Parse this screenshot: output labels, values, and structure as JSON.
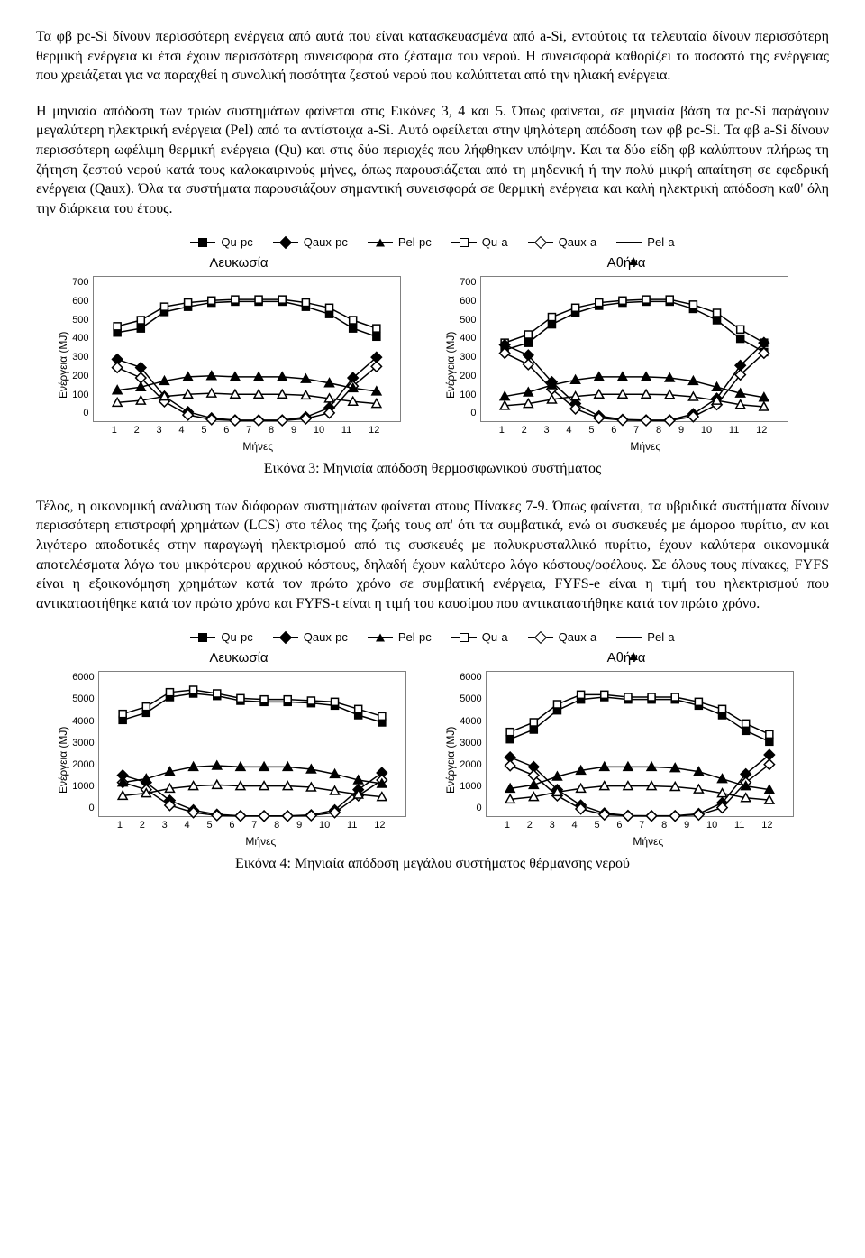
{
  "paragraphs": {
    "p1": "Τα φβ pc-Si δίνουν περισσότερη ενέργεια από αυτά που είναι κατασκευασμένα από a-Si, εντούτοις τα τελευταία δίνουν περισσότερη θερμική ενέργεια κι έτσι έχουν περισσότερη συνεισφορά στο ζέσταμα του νερού. Η συνεισφορά καθορίζει το ποσοστό της ενέργειας που χρειάζεται για να παραχθεί η συνολική ποσότητα ζεστού νερού που καλύπτεται από την ηλιακή ενέργεια.",
    "p2": "Η μηνιαία απόδοση των τριών συστημάτων φαίνεται στις Εικόνες 3, 4 και 5. Όπως φαίνεται, σε μηνιαία βάση τα pc-Si παράγουν μεγαλύτερη ηλεκτρική ενέργεια (Pel) από τα αντίστοιχα a-Si. Αυτό οφείλεται στην ψηλότερη απόδοση των φβ pc-Si. Τα φβ a-Si δίνουν περισσότερη ωφέλιμη θερμική ενέργεια (Qu) και στις δύο περιοχές που λήφθηκαν υπόψην. Και τα δύο είδη φβ καλύπτουν πλήρως τη ζήτηση ζεστού νερού κατά τους καλοκαιρινούς μήνες, όπως παρουσιάζεται από τη μηδενική ή την πολύ μικρή απαίτηση σε εφεδρική ενέργεια (Qaux). Όλα τα συστήματα παρουσιάζουν σημαντική συνεισφορά σε θερμική ενέργεια και καλή ηλεκτρική απόδοση καθ' όλη την διάρκεια του έτους.",
    "p3": "Τέλος, η οικονομική ανάλυση των διάφορων συστημάτων φαίνεται στους Πίνακες 7-9. Όπως φαίνεται, τα υβριδικά συστήματα δίνουν περισσότερη επιστροφή χρημάτων (LCS) στο τέλος της ζωής τους απ' ότι τα συμβατικά, ενώ οι συσκευές με άμορφο πυρίτιο, αν και λιγότερο αποδοτικές στην παραγωγή ηλεκτρισμού από τις συσκευές με πολυκρυσταλλικό πυρίτιο, έχουν καλύτερα οικονομικά αποτελέσματα λόγω του μικρότερου αρχικού κόστους, δηλαδή έχουν καλύτερο λόγο κόστους/οφέλους. Σε όλους τους πίνακες, FYFS είναι η εξοικονόμηση χρημάτων κατά τον πρώτο χρόνο σε συμβατική ενέργεια, FYFS-e είναι η τιμή του ηλεκτρισμού που αντικαταστήθηκε κατά τον πρώτο χρόνο και FYFS-t είναι η τιμή του καυσίμου που αντικαταστήθηκε κατά τον πρώτο χρόνο."
  },
  "legend_series": [
    {
      "label": "Qu-pc",
      "marker": "sq-filled"
    },
    {
      "label": "Qaux-pc",
      "marker": "diamond-filled"
    },
    {
      "label": "Pel-pc",
      "marker": "tri-filled"
    },
    {
      "label": "Qu-a",
      "marker": "sq-open"
    },
    {
      "label": "Qaux-a",
      "marker": "diamond-open"
    },
    {
      "label": "Pel-a",
      "marker": "tri-open"
    }
  ],
  "axes": {
    "x_label": "Μήνες",
    "y_label": "Ενέργεια (MJ)",
    "months": [
      1,
      2,
      3,
      4,
      5,
      6,
      7,
      8,
      9,
      10,
      11,
      12
    ]
  },
  "figure3": {
    "caption": "Εικόνα 3: Μηνιαία απόδοση θερμοσιφωνικού συστήματος",
    "y_ticks": [
      0,
      100,
      200,
      300,
      400,
      500,
      600,
      700
    ],
    "ylim": [
      0,
      700
    ],
    "title_fontsize": 15,
    "label_fontsize": 12,
    "tick_fontsize": 11,
    "background_color": "#ffffff",
    "grid_color": "#808080",
    "line_width": 1.5,
    "marker_size": 8,
    "nicosia": {
      "title": "Λευκωσία",
      "series": {
        "Qu-pc": {
          "marker": "sq-filled",
          "color": "#000000",
          "values": [
            430,
            450,
            530,
            555,
            575,
            580,
            580,
            580,
            555,
            520,
            450,
            410
          ]
        },
        "Qu-a": {
          "marker": "sq-open",
          "color": "#000000",
          "values": [
            460,
            490,
            555,
            575,
            585,
            590,
            590,
            590,
            575,
            550,
            490,
            450
          ]
        },
        "Qaux-pc": {
          "marker": "diamond-filled",
          "color": "#000000",
          "values": [
            300,
            260,
            120,
            45,
            15,
            5,
            5,
            5,
            20,
            65,
            210,
            310
          ]
        },
        "Qaux-a": {
          "marker": "diamond-open",
          "color": "#000000",
          "values": [
            260,
            210,
            95,
            30,
            8,
            3,
            3,
            3,
            12,
            40,
            170,
            265
          ]
        },
        "Pel-pc": {
          "marker": "tri-filled",
          "color": "#000000",
          "values": [
            150,
            165,
            195,
            215,
            220,
            215,
            215,
            215,
            205,
            185,
            160,
            145
          ]
        },
        "Pel-a": {
          "marker": "tri-open",
          "color": "#000000",
          "values": [
            90,
            100,
            120,
            130,
            135,
            130,
            130,
            130,
            125,
            110,
            95,
            85
          ]
        }
      }
    },
    "athens": {
      "title": "Αθήνα",
      "series": {
        "Qu-pc": {
          "marker": "sq-filled",
          "color": "#000000",
          "values": [
            345,
            380,
            470,
            525,
            560,
            575,
            580,
            580,
            545,
            490,
            400,
            335
          ]
        },
        "Qu-a": {
          "marker": "sq-open",
          "color": "#000000",
          "values": [
            380,
            420,
            505,
            550,
            575,
            585,
            590,
            590,
            565,
            525,
            445,
            380
          ]
        },
        "Qaux-pc": {
          "marker": "diamond-filled",
          "color": "#000000",
          "values": [
            370,
            320,
            190,
            85,
            25,
            8,
            5,
            5,
            35,
            110,
            270,
            380
          ]
        },
        "Qaux-a": {
          "marker": "diamond-open",
          "color": "#000000",
          "values": [
            330,
            275,
            155,
            60,
            15,
            5,
            3,
            3,
            22,
            80,
            225,
            330
          ]
        },
        "Pel-pc": {
          "marker": "tri-filled",
          "color": "#000000",
          "values": [
            120,
            140,
            175,
            200,
            215,
            215,
            215,
            210,
            195,
            165,
            135,
            115
          ]
        },
        "Pel-a": {
          "marker": "tri-open",
          "color": "#000000",
          "values": [
            75,
            85,
            105,
            120,
            130,
            130,
            130,
            128,
            118,
            100,
            80,
            70
          ]
        }
      }
    }
  },
  "figure4": {
    "caption": "Εικόνα 4: Μηνιαία απόδοση μεγάλου συστήματος θέρμανσης νερού",
    "y_ticks": [
      0,
      1000,
      2000,
      3000,
      4000,
      5000,
      6000
    ],
    "ylim": [
      0,
      6000
    ],
    "title_fontsize": 15,
    "label_fontsize": 12,
    "tick_fontsize": 11,
    "background_color": "#ffffff",
    "grid_color": "#808080",
    "line_width": 1.5,
    "marker_size": 8,
    "nicosia": {
      "title": "Λευκωσία",
      "series": {
        "Qu-pc": {
          "marker": "sq-filled",
          "color": "#000000",
          "values": [
            4000,
            4300,
            4950,
            5100,
            5000,
            4800,
            4750,
            4750,
            4700,
            4600,
            4200,
            3900
          ]
        },
        "Qu-a": {
          "marker": "sq-open",
          "color": "#000000",
          "values": [
            4250,
            4550,
            5150,
            5250,
            5100,
            4900,
            4850,
            4850,
            4800,
            4750,
            4450,
            4150
          ]
        },
        "Qaux-pc": {
          "marker": "diamond-filled",
          "color": "#000000",
          "values": [
            1700,
            1400,
            650,
            250,
            70,
            15,
            10,
            10,
            50,
            250,
            1100,
            1800
          ]
        },
        "Qaux-a": {
          "marker": "diamond-open",
          "color": "#000000",
          "values": [
            1400,
            1100,
            450,
            150,
            30,
            8,
            5,
            5,
            25,
            150,
            850,
            1500
          ]
        },
        "Pel-pc": {
          "marker": "tri-filled",
          "color": "#000000",
          "values": [
            1400,
            1550,
            1850,
            2050,
            2100,
            2050,
            2050,
            2050,
            1950,
            1750,
            1500,
            1350
          ]
        },
        "Pel-a": {
          "marker": "tri-open",
          "color": "#000000",
          "values": [
            850,
            950,
            1150,
            1250,
            1300,
            1250,
            1250,
            1250,
            1200,
            1050,
            900,
            800
          ]
        }
      }
    },
    "athens": {
      "title": "Αθήνα",
      "series": {
        "Qu-pc": {
          "marker": "sq-filled",
          "color": "#000000",
          "values": [
            3200,
            3600,
            4400,
            4850,
            4950,
            4850,
            4850,
            4850,
            4600,
            4200,
            3550,
            3100
          ]
        },
        "Qu-a": {
          "marker": "sq-open",
          "color": "#000000",
          "values": [
            3500,
            3900,
            4650,
            5050,
            5050,
            4950,
            4950,
            4950,
            4750,
            4450,
            3850,
            3400
          ]
        },
        "Qaux-pc": {
          "marker": "diamond-filled",
          "color": "#000000",
          "values": [
            2450,
            2050,
            1100,
            450,
            120,
            25,
            15,
            15,
            100,
            550,
            1750,
            2550
          ]
        },
        "Qaux-a": {
          "marker": "diamond-open",
          "color": "#000000",
          "values": [
            2100,
            1700,
            850,
            300,
            60,
            12,
            8,
            8,
            55,
            350,
            1400,
            2150
          ]
        },
        "Pel-pc": {
          "marker": "tri-filled",
          "color": "#000000",
          "values": [
            1150,
            1300,
            1650,
            1900,
            2050,
            2050,
            2050,
            2000,
            1850,
            1550,
            1250,
            1100
          ]
        },
        "Pel-a": {
          "marker": "tri-open",
          "color": "#000000",
          "values": [
            700,
            800,
            1000,
            1150,
            1250,
            1250,
            1250,
            1220,
            1120,
            950,
            760,
            670
          ]
        }
      }
    }
  }
}
